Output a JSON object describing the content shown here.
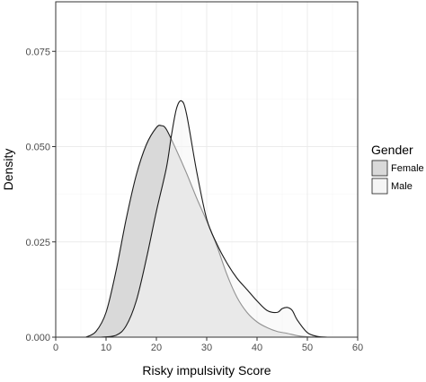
{
  "chart_data": {
    "type": "area",
    "subtype": "density",
    "xlabel": "Risky impulsivity Score",
    "ylabel": "Density",
    "xlim": [
      0,
      60
    ],
    "ylim": [
      0,
      0.088
    ],
    "x_ticks": [
      0,
      10,
      20,
      30,
      40,
      50,
      60
    ],
    "x_tick_labels": [
      "0",
      "10",
      "20",
      "30",
      "40",
      "50",
      "60"
    ],
    "y_ticks": [
      0.0,
      0.025,
      0.05,
      0.075
    ],
    "y_tick_labels": [
      "0.000",
      "0.025",
      "0.050",
      "0.075"
    ],
    "grid": true,
    "legend": {
      "title": "Gender",
      "position": "right",
      "entries": [
        "Female",
        "Male"
      ]
    },
    "series": [
      {
        "name": "Female",
        "fill": "#d9d9d9",
        "x": [
          6,
          8,
          10,
          12,
          14,
          16,
          18,
          20,
          21,
          22,
          24,
          26,
          28,
          30,
          32,
          34,
          36,
          38,
          40,
          42,
          44,
          46,
          48,
          50,
          52
        ],
        "y": [
          0.0,
          0.0015,
          0.0065,
          0.0175,
          0.031,
          0.0425,
          0.0505,
          0.055,
          0.0555,
          0.0545,
          0.049,
          0.043,
          0.0365,
          0.0305,
          0.024,
          0.0165,
          0.0105,
          0.0065,
          0.004,
          0.0025,
          0.0015,
          0.001,
          0.0004,
          0.0001,
          0.0
        ]
      },
      {
        "name": "Male",
        "fill": "#f5f5f5",
        "x": [
          9,
          12,
          14,
          16,
          18,
          20,
          22,
          23,
          24,
          25,
          26,
          28,
          30,
          32,
          34,
          36,
          38,
          40,
          42,
          44,
          45,
          46,
          47,
          48,
          50,
          52,
          54
        ],
        "y": [
          0.0,
          0.0005,
          0.003,
          0.0095,
          0.0205,
          0.033,
          0.0445,
          0.053,
          0.06,
          0.062,
          0.0585,
          0.0435,
          0.031,
          0.0245,
          0.0195,
          0.0155,
          0.0125,
          0.0095,
          0.007,
          0.0065,
          0.0075,
          0.0078,
          0.007,
          0.0045,
          0.0012,
          0.0002,
          0.0
        ]
      }
    ]
  },
  "colors": {
    "panel_border": "#333333",
    "grid_major": "#ebebeb",
    "grid_minor": "#f5f5f5",
    "curve_line": "#1a1a1a",
    "female_fill": "#d9d9d9",
    "male_fill": "#f5f5f5"
  }
}
